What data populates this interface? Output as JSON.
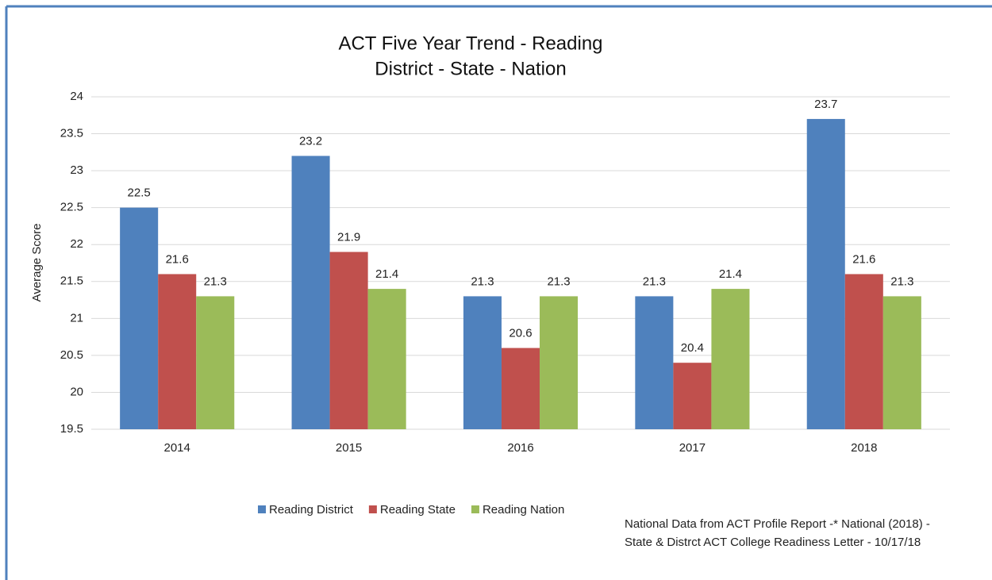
{
  "chart_data": {
    "type": "bar",
    "title": "ACT Five Year Trend - Reading",
    "subtitle": "District - State - Nation",
    "y_label": "Average Score",
    "categories": [
      "2014",
      "2015",
      "2016",
      "2017",
      "2018"
    ],
    "series": [
      {
        "name": "Reading District",
        "color": "#4f81bd",
        "values": [
          22.5,
          23.2,
          21.3,
          21.3,
          23.7
        ]
      },
      {
        "name": "Reading State",
        "color": "#c0504d",
        "values": [
          21.6,
          21.9,
          20.6,
          20.4,
          21.6
        ]
      },
      {
        "name": "Reading Nation",
        "color": "#9bbb59",
        "values": [
          21.3,
          21.4,
          21.3,
          21.4,
          21.3
        ]
      }
    ],
    "ylim": [
      19.5,
      24
    ],
    "yticks": [
      19.5,
      20,
      20.5,
      21,
      21.5,
      22,
      22.5,
      23,
      23.5,
      24
    ],
    "grid": true,
    "legend": "bottom",
    "annotations": [
      "National Data from ACT Profile Report -* National (2018) -",
      "State & Distrct ACT College Readiness Letter - 10/17/18"
    ]
  }
}
